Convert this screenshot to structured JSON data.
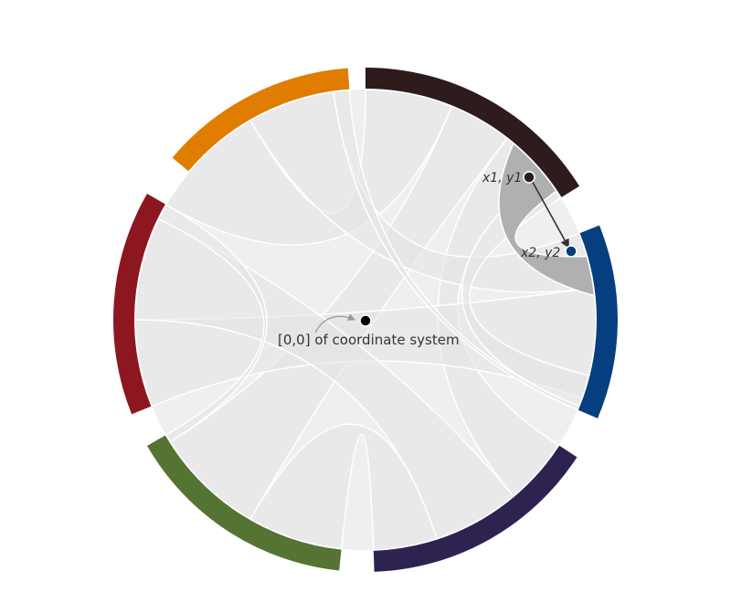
{
  "colors": {
    "background": "#ffffff",
    "ribbon": "#e3e3e3",
    "highlight_ribbon": "#b0b0b0",
    "inner_circle": "#efefef",
    "arrow": "#333333",
    "leader": "#999999",
    "origin_point": "#000000",
    "point_1": "#2d1b1b",
    "point_2": "#0a3d78"
  },
  "groups": [
    {
      "id": "dark-brown",
      "color": "#2e1b1c"
    },
    {
      "id": "blue",
      "color": "#063f7f"
    },
    {
      "id": "purple",
      "color": "#2e2251"
    },
    {
      "id": "green",
      "color": "#557434"
    },
    {
      "id": "red",
      "color": "#8d1720"
    },
    {
      "id": "orange",
      "color": "#e07d00"
    }
  ],
  "labels": {
    "point_1": "x1, y1",
    "point_2": "x2, y2",
    "origin": "[0,0] of coordinate system"
  }
}
